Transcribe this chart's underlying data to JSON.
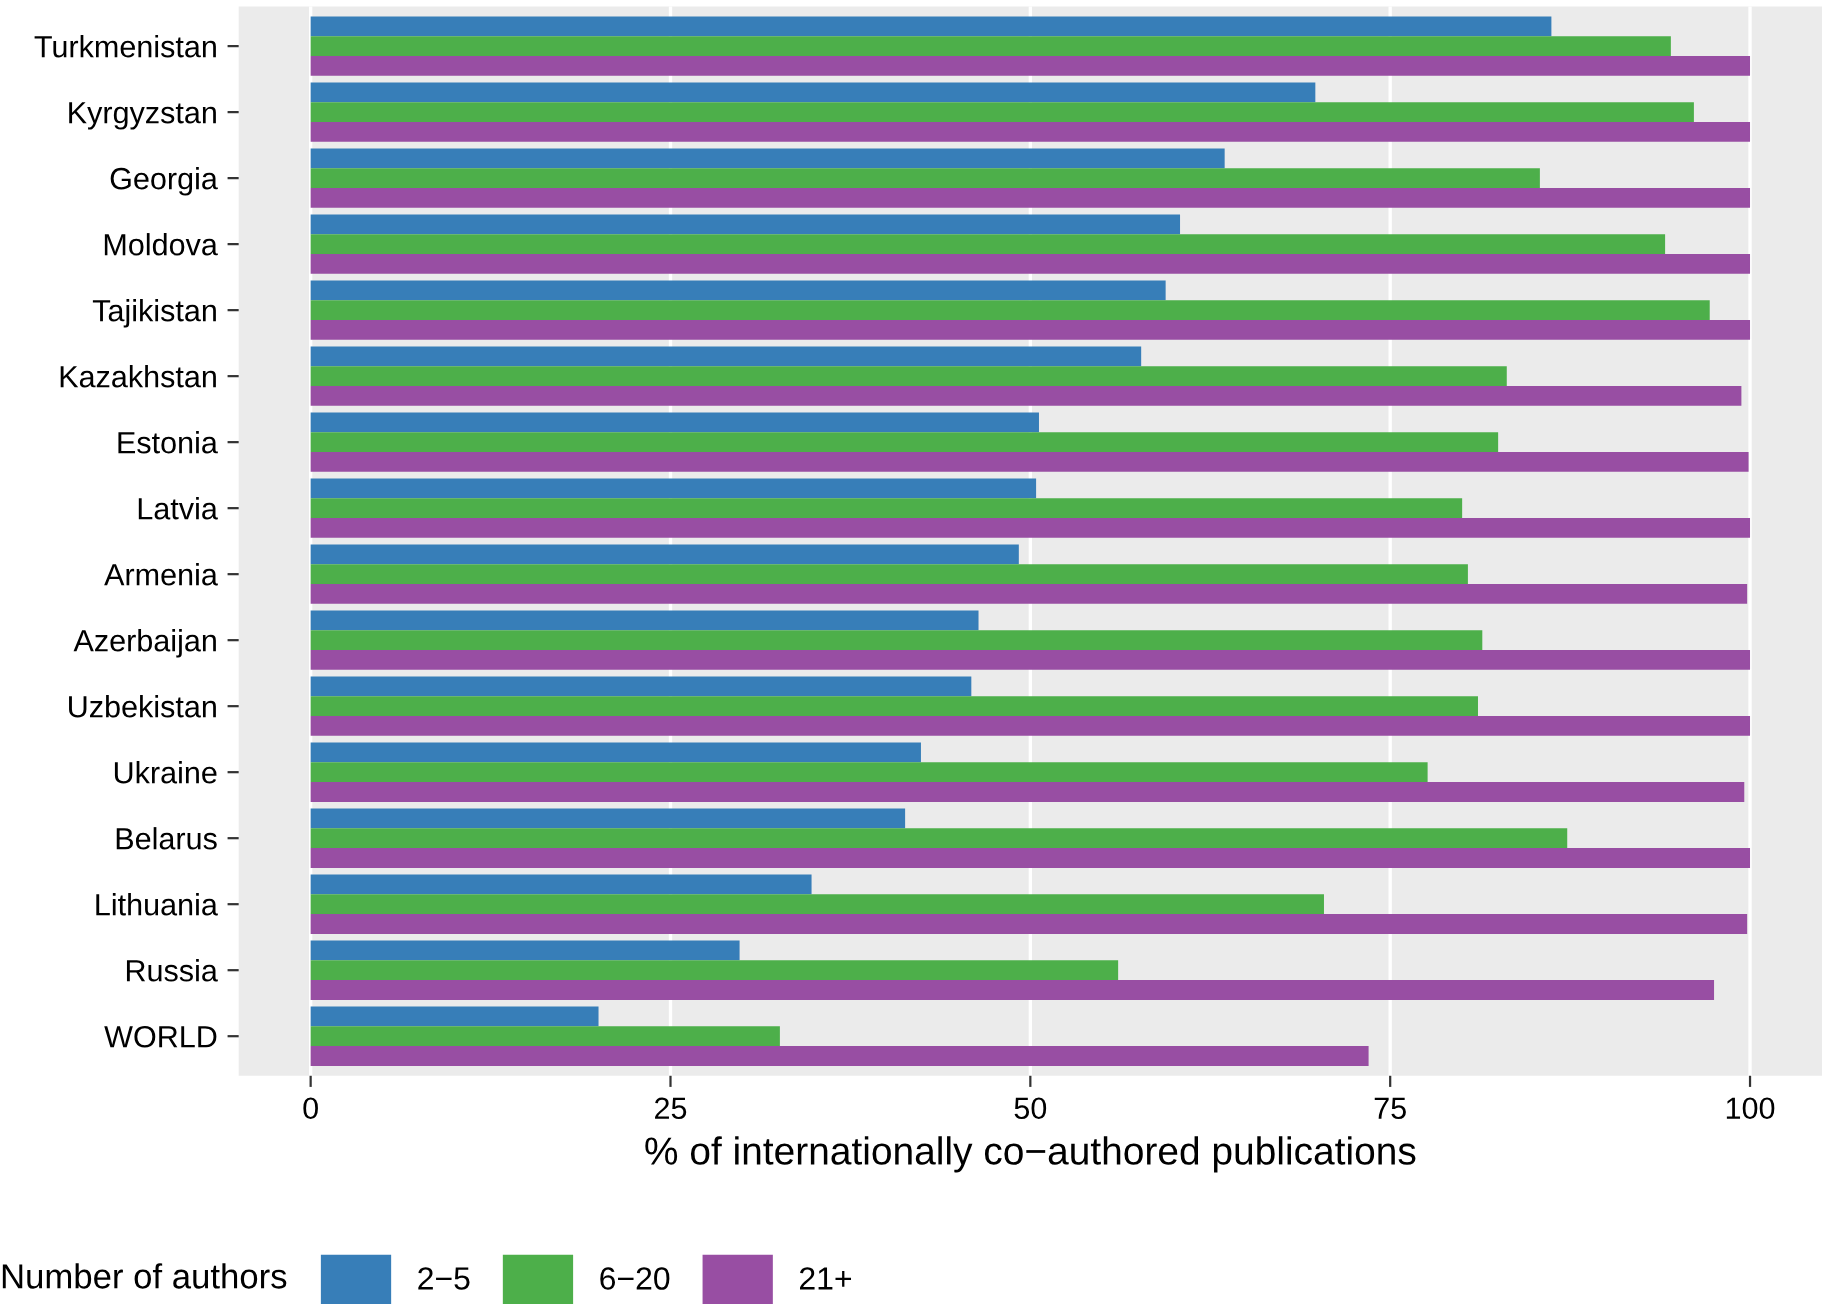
{
  "chart_data": {
    "type": "bar",
    "orientation": "horizontal",
    "xlabel": "% of internationally co−authored publications",
    "legend_title": "Number of authors",
    "legend": "bottom",
    "grid": "x",
    "categories": [
      "Turkmenistan",
      "Kyrgyzstan",
      "Georgia",
      "Moldova",
      "Tajikistan",
      "Kazakhstan",
      "Estonia",
      "Latvia",
      "Armenia",
      "Azerbaijan",
      "Uzbekistan",
      "Ukraine",
      "Belarus",
      "Lithuania",
      "Russia",
      "WORLD"
    ],
    "xlim": [
      -5,
      105
    ],
    "xticks": [
      0,
      25,
      50,
      75,
      100
    ],
    "series": [
      {
        "name": "2−5",
        "color": "#377eb8",
        "values": [
          86.2,
          69.8,
          63.5,
          60.4,
          59.4,
          57.7,
          50.6,
          50.4,
          49.2,
          46.4,
          45.9,
          42.4,
          41.3,
          34.8,
          29.8,
          20.0
        ]
      },
      {
        "name": "6−20",
        "color": "#4daf4a",
        "values": [
          94.5,
          96.1,
          85.4,
          94.1,
          97.2,
          83.1,
          82.5,
          80.0,
          80.4,
          81.4,
          81.1,
          77.6,
          87.3,
          70.4,
          56.1,
          32.6
        ]
      },
      {
        "name": "21+",
        "color": "#984ea3",
        "values": [
          100,
          100,
          100,
          100,
          100,
          99.4,
          99.9,
          100,
          99.8,
          100,
          100,
          99.6,
          100,
          99.8,
          97.5,
          73.5
        ]
      }
    ]
  }
}
